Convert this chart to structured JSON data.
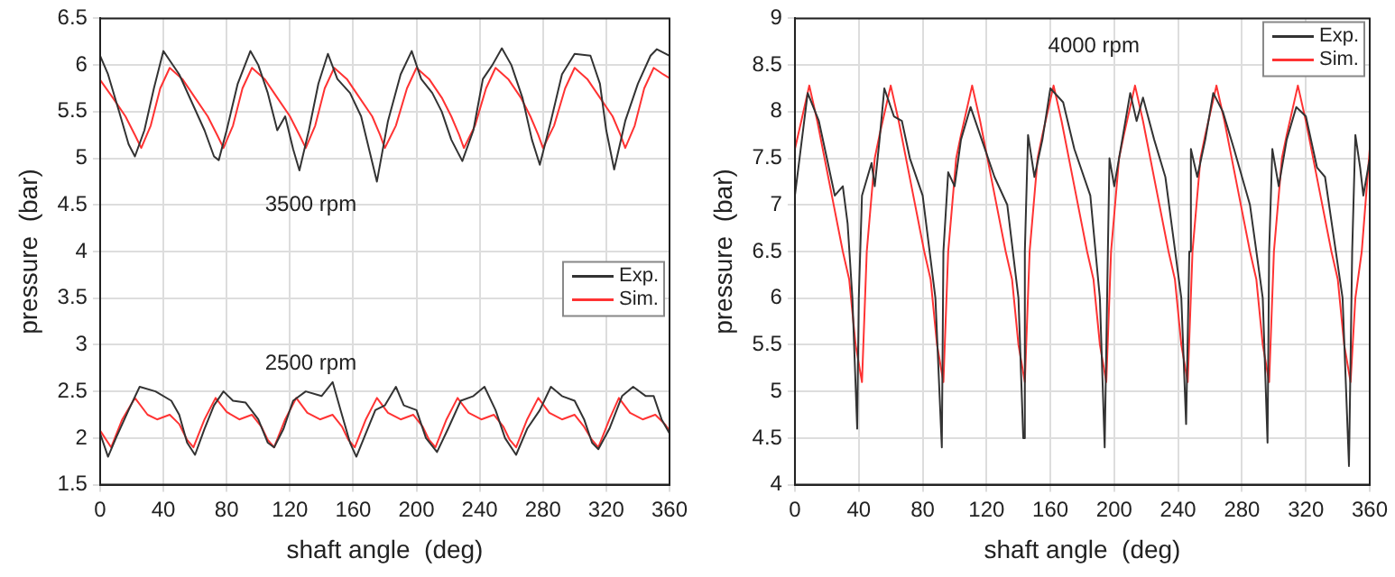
{
  "chart_data": [
    {
      "type": "line",
      "xlabel": "shaft angle  (deg)",
      "ylabel": "pressure  (bar)",
      "xlim": [
        0,
        360
      ],
      "xticks": [
        0,
        40,
        80,
        120,
        160,
        200,
        240,
        280,
        320,
        360
      ],
      "ylim": [
        1.5,
        6.5
      ],
      "yticks": [
        1.5,
        2,
        2.5,
        3,
        3.5,
        4,
        4.5,
        5,
        5.5,
        6,
        6.5
      ],
      "grid": true,
      "legend": "right",
      "marker": "none",
      "line_style": "solid",
      "annotations": [
        "3500 rpm",
        "2500 rpm"
      ],
      "series": [
        {
          "name": "Exp.",
          "color": "#333333",
          "x": [
            0,
            5,
            12,
            18,
            22,
            28,
            34,
            40,
            44,
            50,
            58,
            66,
            72,
            75,
            80,
            87,
            95,
            100,
            106,
            112,
            117,
            122,
            126,
            132,
            138,
            144,
            150,
            158,
            165,
            170,
            175,
            182,
            190,
            197,
            203,
            210,
            216,
            222,
            229,
            236,
            242,
            248,
            254,
            260,
            267,
            273,
            278,
            285,
            292,
            300,
            310,
            316,
            320,
            325,
            332,
            340,
            348,
            352,
            360
          ],
          "values": [
            6.1,
            5.9,
            5.5,
            5.15,
            5.02,
            5.3,
            5.75,
            6.15,
            6.05,
            5.9,
            5.6,
            5.3,
            5.02,
            4.98,
            5.3,
            5.8,
            6.15,
            6.0,
            5.7,
            5.3,
            5.45,
            5.1,
            4.87,
            5.3,
            5.8,
            6.12,
            5.85,
            5.7,
            5.45,
            5.1,
            4.75,
            5.4,
            5.9,
            6.15,
            5.85,
            5.7,
            5.5,
            5.2,
            4.97,
            5.3,
            5.85,
            6.0,
            6.18,
            6.0,
            5.65,
            5.2,
            4.93,
            5.4,
            5.9,
            6.12,
            6.1,
            5.8,
            5.3,
            4.88,
            5.4,
            5.8,
            6.1,
            6.17,
            6.1
          ]
        },
        {
          "name": "Sim.",
          "color": "#ff3333",
          "x": [
            0,
            8,
            16,
            22,
            26,
            32,
            38,
            44,
            52,
            60,
            68,
            74,
            78,
            84,
            90,
            96,
            104,
            112,
            120,
            126,
            130,
            136,
            142,
            148,
            156,
            164,
            172,
            177,
            180,
            187,
            194,
            200,
            208,
            216,
            222,
            227,
            230,
            237,
            244,
            250,
            258,
            266,
            272,
            277,
            280,
            287,
            294,
            300,
            308,
            316,
            324,
            329,
            332,
            338,
            344,
            350,
            356,
            360
          ],
          "values": [
            5.84,
            5.65,
            5.45,
            5.25,
            5.11,
            5.35,
            5.75,
            5.97,
            5.85,
            5.65,
            5.45,
            5.25,
            5.11,
            5.35,
            5.75,
            5.97,
            5.85,
            5.65,
            5.45,
            5.25,
            5.11,
            5.35,
            5.75,
            5.97,
            5.85,
            5.65,
            5.45,
            5.25,
            5.11,
            5.35,
            5.75,
            5.97,
            5.85,
            5.65,
            5.45,
            5.25,
            5.11,
            5.35,
            5.75,
            5.97,
            5.85,
            5.65,
            5.45,
            5.25,
            5.11,
            5.35,
            5.75,
            5.97,
            5.85,
            5.65,
            5.45,
            5.25,
            5.11,
            5.35,
            5.75,
            5.97,
            5.9,
            5.86
          ]
        },
        {
          "color": "#333333",
          "x": [
            0,
            5,
            10,
            18,
            25,
            35,
            45,
            50,
            55,
            60,
            66,
            72,
            78,
            84,
            92,
            100,
            106,
            110,
            116,
            122,
            130,
            140,
            147,
            152,
            158,
            162,
            168,
            174,
            180,
            187,
            192,
            200,
            206,
            213,
            220,
            228,
            236,
            243,
            250,
            256,
            263,
            270,
            278,
            285,
            292,
            300,
            306,
            311,
            315,
            322,
            330,
            337,
            345,
            350,
            355,
            360
          ],
          "values": [
            2.05,
            1.8,
            2.0,
            2.3,
            2.55,
            2.5,
            2.4,
            2.25,
            1.95,
            1.82,
            2.1,
            2.35,
            2.5,
            2.4,
            2.38,
            2.2,
            1.95,
            1.9,
            2.1,
            2.4,
            2.5,
            2.45,
            2.6,
            2.3,
            1.95,
            1.8,
            2.05,
            2.3,
            2.35,
            2.55,
            2.35,
            2.3,
            2.0,
            1.85,
            2.1,
            2.4,
            2.45,
            2.55,
            2.3,
            2.0,
            1.82,
            2.1,
            2.3,
            2.55,
            2.45,
            2.4,
            2.2,
            1.95,
            1.88,
            2.1,
            2.45,
            2.55,
            2.45,
            2.45,
            2.2,
            2.05
          ]
        },
        {
          "color": "#ff3333",
          "x": [
            0,
            7,
            14,
            22,
            30,
            36,
            44,
            50,
            55,
            59,
            66,
            73,
            80,
            88,
            96,
            102,
            106,
            110,
            117,
            124,
            131,
            139,
            147,
            153,
            157,
            161,
            168,
            175,
            182,
            190,
            198,
            204,
            208,
            212,
            219,
            226,
            233,
            241,
            249,
            255,
            259,
            263,
            270,
            277,
            284,
            292,
            300,
            306,
            311,
            315,
            322,
            328,
            335,
            343,
            351,
            357,
            360
          ],
          "values": [
            2.08,
            1.9,
            2.2,
            2.43,
            2.25,
            2.2,
            2.25,
            2.15,
            1.98,
            1.9,
            2.2,
            2.43,
            2.28,
            2.2,
            2.25,
            2.12,
            1.98,
            1.9,
            2.2,
            2.43,
            2.27,
            2.2,
            2.25,
            2.12,
            1.98,
            1.9,
            2.2,
            2.43,
            2.27,
            2.2,
            2.25,
            2.12,
            1.98,
            1.9,
            2.2,
            2.43,
            2.27,
            2.2,
            2.25,
            2.12,
            1.98,
            1.9,
            2.2,
            2.43,
            2.27,
            2.2,
            2.25,
            2.12,
            1.98,
            1.9,
            2.2,
            2.43,
            2.27,
            2.2,
            2.25,
            2.15,
            2.08
          ]
        }
      ]
    },
    {
      "type": "line",
      "xlabel": "shaft angle  (deg)",
      "ylabel": "pressure  (bar)",
      "xlim": [
        0,
        360
      ],
      "xticks": [
        0,
        40,
        80,
        120,
        160,
        200,
        240,
        280,
        320,
        360
      ],
      "ylim": [
        4,
        9
      ],
      "yticks": [
        4,
        4.5,
        5,
        5.5,
        6,
        6.5,
        7,
        7.5,
        8,
        8.5,
        9
      ],
      "grid": true,
      "legend": "top right",
      "marker": "none",
      "line_style": "solid",
      "annotations": [
        "4000 rpm"
      ],
      "series": [
        {
          "name": "Exp.",
          "color": "#333333",
          "x": [
            0,
            8,
            15,
            20,
            25,
            30,
            33,
            36,
            39,
            40,
            42,
            48,
            50,
            53,
            56,
            62,
            67,
            72,
            80,
            88,
            92,
            93,
            96,
            100,
            104,
            110,
            117,
            125,
            133,
            140,
            143,
            144,
            146,
            150,
            155,
            160,
            168,
            175,
            185,
            191,
            194,
            196,
            197,
            200,
            205,
            210,
            214,
            218,
            225,
            232,
            242,
            245,
            247,
            248,
            252,
            257,
            262,
            268,
            275,
            285,
            293,
            296,
            297,
            299,
            303,
            308,
            314,
            320,
            327,
            332,
            343,
            347,
            349,
            351,
            354,
            356,
            360
          ],
          "values": [
            7.1,
            8.2,
            7.9,
            7.5,
            7.1,
            7.2,
            6.8,
            6.0,
            4.6,
            6.0,
            7.1,
            7.45,
            7.2,
            7.7,
            8.25,
            7.95,
            7.9,
            7.5,
            7.1,
            6.0,
            4.4,
            6.5,
            7.35,
            7.2,
            7.7,
            8.05,
            7.7,
            7.3,
            7.0,
            6.0,
            4.5,
            6.5,
            7.75,
            7.3,
            7.7,
            8.25,
            8.1,
            7.6,
            7.1,
            6.0,
            4.4,
            6.5,
            7.5,
            7.2,
            7.7,
            8.2,
            7.9,
            8.15,
            7.7,
            7.3,
            6.0,
            4.65,
            6.5,
            7.6,
            7.3,
            7.7,
            8.2,
            8.0,
            7.6,
            7.0,
            6.0,
            4.45,
            6.5,
            7.6,
            7.2,
            7.7,
            8.05,
            7.95,
            7.4,
            7.3,
            6.0,
            4.2,
            6.5,
            7.75,
            7.4,
            7.1,
            7.5
          ]
        },
        {
          "name": "Sim.",
          "color": "#ff3333",
          "x": [
            0,
            4,
            9,
            14,
            22,
            30,
            34,
            38,
            42,
            45,
            50,
            53,
            60,
            65,
            73,
            81,
            85,
            89,
            93,
            96,
            101,
            104,
            111,
            116,
            124,
            132,
            136,
            140,
            144,
            147,
            152,
            155,
            162,
            167,
            175,
            183,
            187,
            191,
            195,
            198,
            203,
            206,
            213,
            218,
            226,
            234,
            238,
            242,
            246,
            249,
            254,
            257,
            264,
            269,
            277,
            285,
            289,
            293,
            297,
            300,
            305,
            308,
            315,
            320,
            328,
            336,
            340,
            344,
            348,
            351,
            355,
            360
          ],
          "values": [
            7.6,
            7.9,
            8.28,
            7.9,
            7.2,
            6.5,
            6.2,
            5.5,
            5.1,
            6.5,
            7.5,
            7.75,
            8.28,
            7.9,
            7.2,
            6.5,
            6.2,
            5.5,
            5.1,
            6.5,
            7.5,
            7.75,
            8.28,
            7.9,
            7.2,
            6.5,
            6.2,
            5.5,
            5.1,
            6.5,
            7.5,
            7.75,
            8.28,
            7.9,
            7.2,
            6.5,
            6.2,
            5.5,
            5.1,
            6.5,
            7.5,
            7.75,
            8.28,
            7.9,
            7.2,
            6.5,
            6.2,
            5.5,
            5.1,
            6.5,
            7.5,
            7.75,
            8.28,
            7.9,
            7.2,
            6.5,
            6.2,
            5.5,
            5.1,
            6.5,
            7.5,
            7.75,
            8.28,
            7.9,
            7.2,
            6.5,
            6.2,
            5.5,
            5.1,
            6.0,
            6.5,
            7.6
          ]
        }
      ]
    }
  ]
}
